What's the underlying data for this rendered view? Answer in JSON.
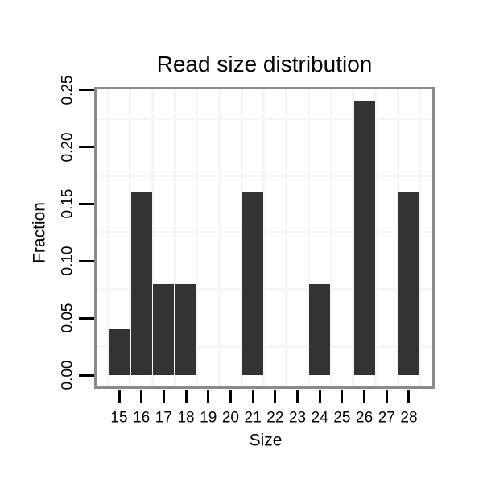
{
  "page": {
    "background": "#ffffff"
  },
  "chart_data": {
    "type": "bar",
    "title": "Read size distribution",
    "xlabel": "Size",
    "ylabel": "Fraction",
    "categories": [
      15,
      16,
      17,
      18,
      19,
      20,
      21,
      22,
      23,
      24,
      25,
      26,
      27,
      28
    ],
    "values": [
      0.04,
      0.16,
      0.08,
      0.08,
      0,
      0,
      0.16,
      0,
      0,
      0.08,
      0,
      0.24,
      0,
      0.16
    ],
    "ytick_labels": [
      "0.00",
      "0.05",
      "0.10",
      "0.15",
      "0.20",
      "0.25"
    ],
    "ytick_values": [
      0,
      0.05,
      0.1,
      0.15,
      0.2,
      0.25
    ],
    "ylim": [
      0,
      0.25
    ],
    "legend": "none",
    "grid": {
      "visible": true,
      "color": "#f5f5f5",
      "horizontal_at": [
        0.025,
        0.075,
        0.125,
        0.175,
        0.225
      ],
      "vertical_between_categories": true
    },
    "colors": {
      "bar": "#333333",
      "plot_border": "#8a8a8a",
      "tick": "#000000",
      "text": "#000000",
      "plot_background": "#ffffff"
    }
  }
}
